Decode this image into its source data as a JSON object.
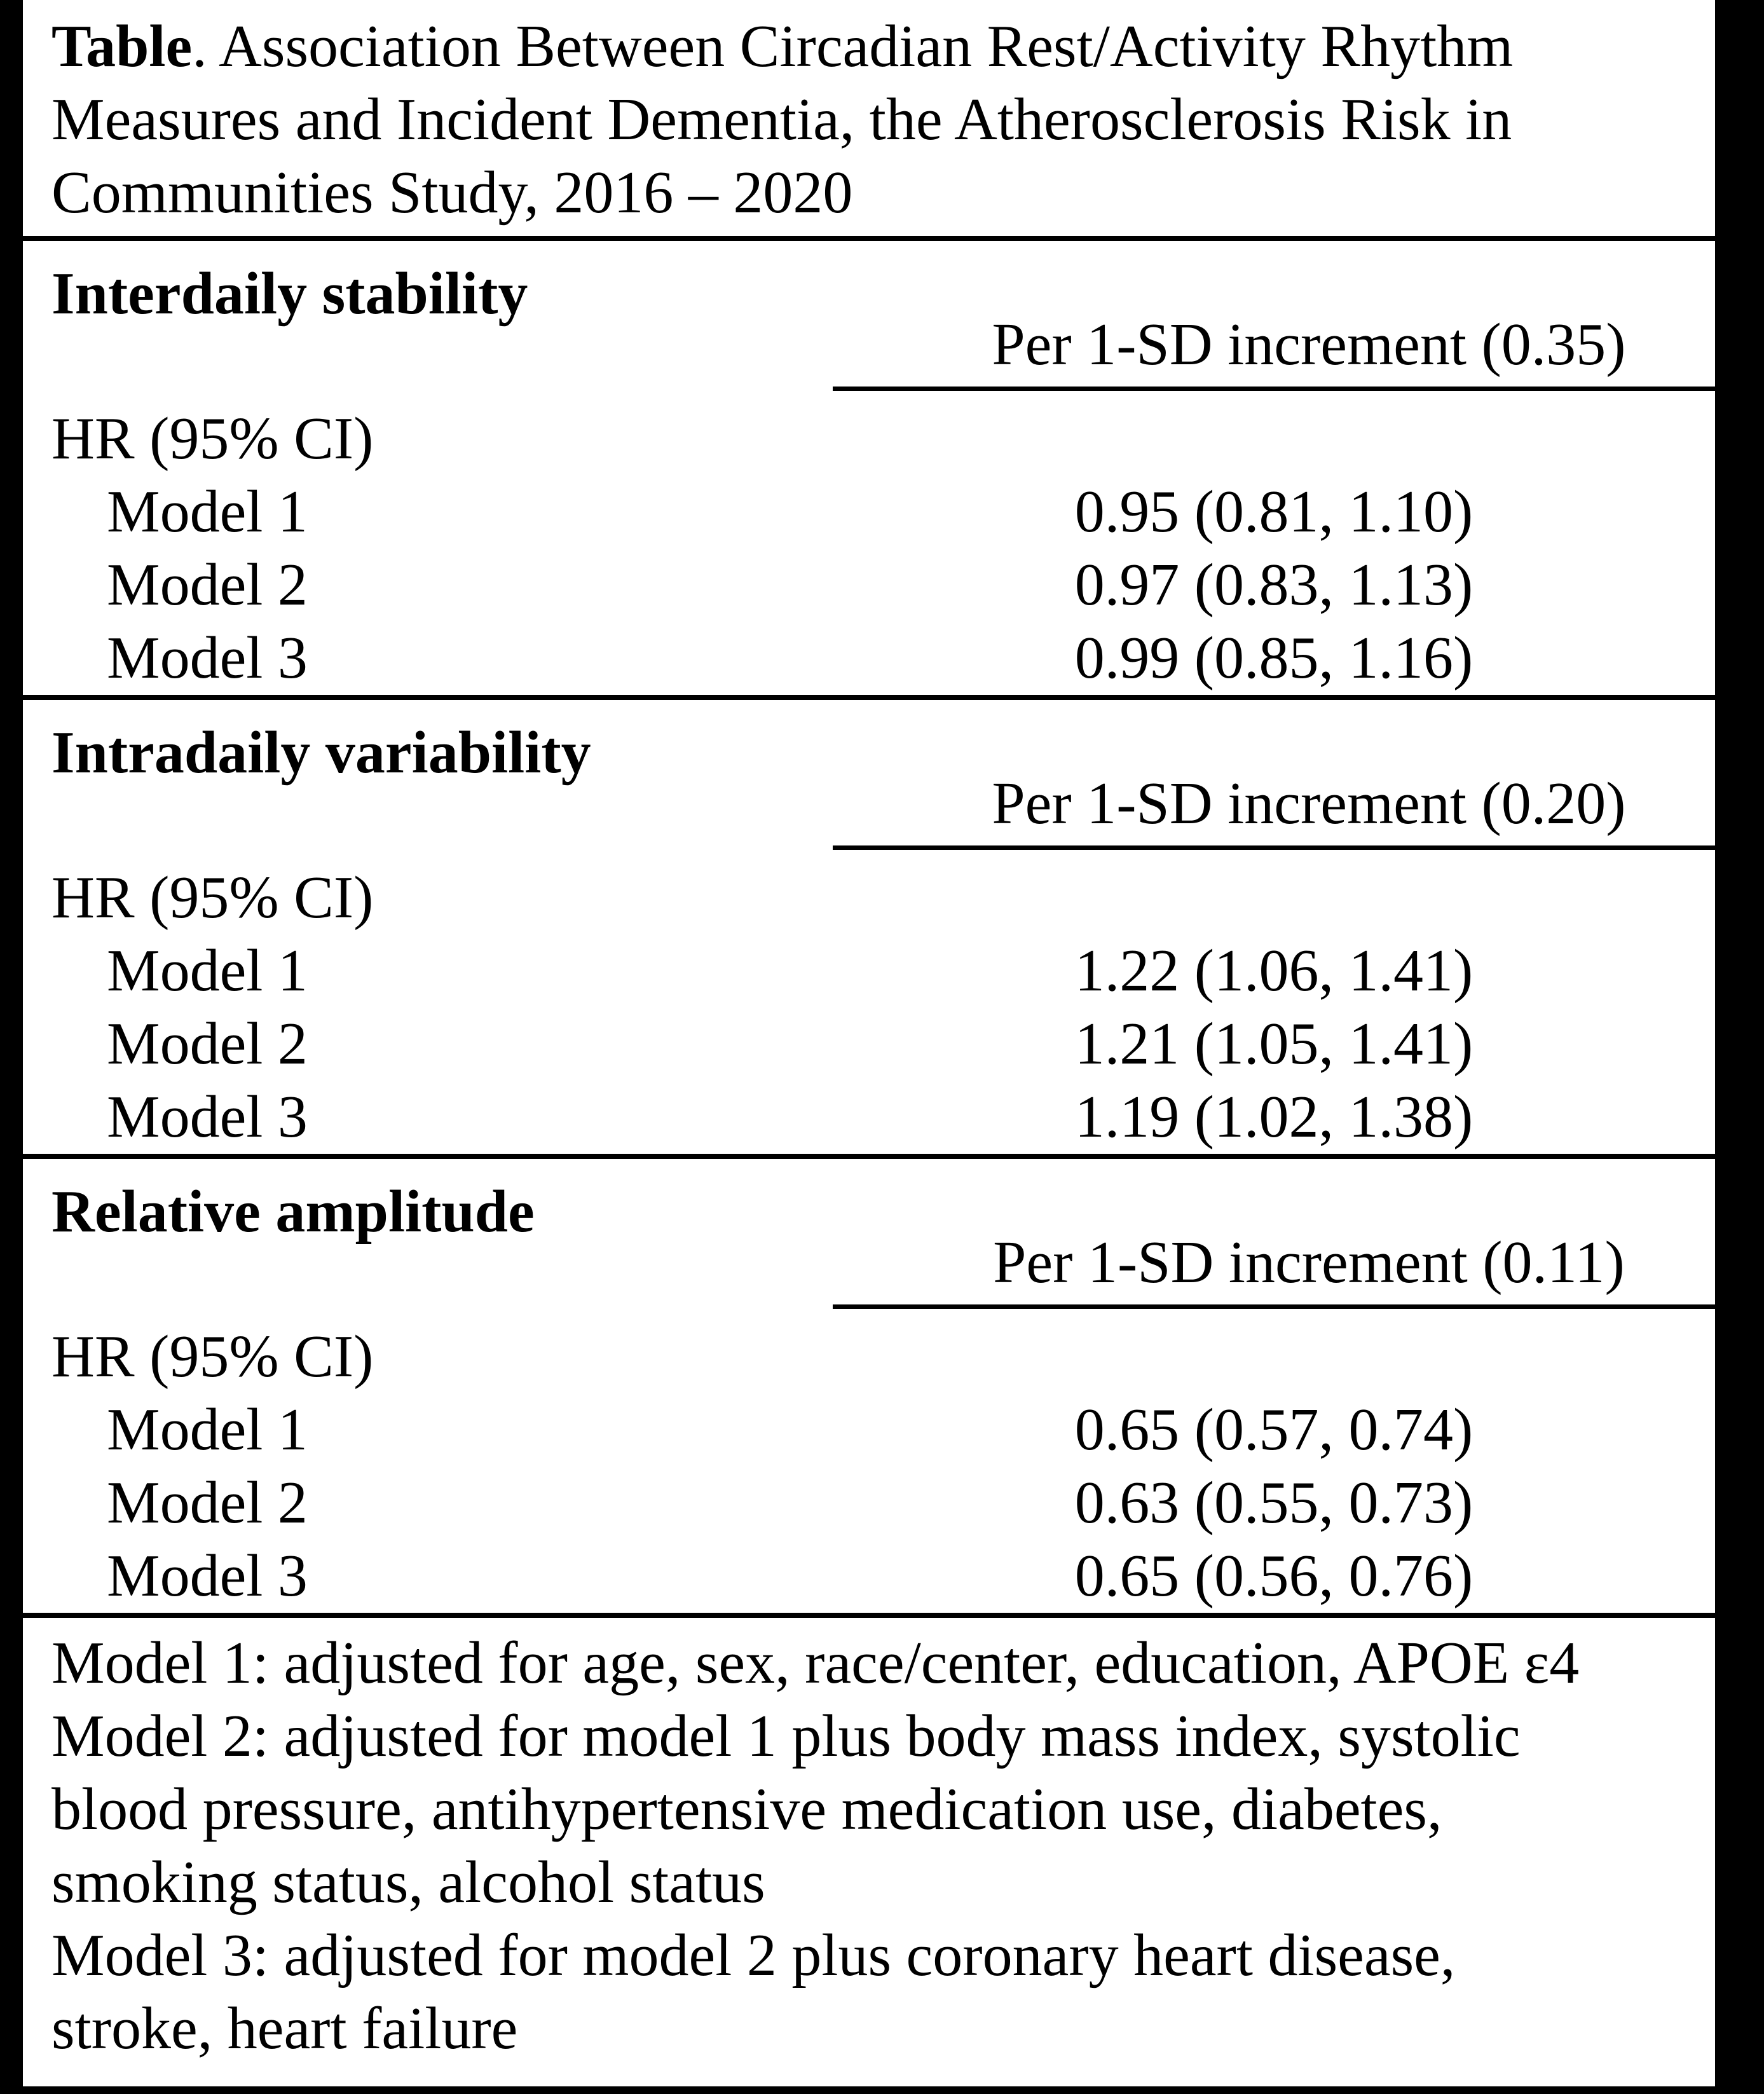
{
  "title": {
    "bold_word": "Table",
    "line1_rest": ". Association Between Circadian Rest/Activity Rhythm",
    "line2": "Measures and Incident Dementia, the Atherosclerosis Risk in",
    "line3": "Communities Study, 2016 – 2020"
  },
  "sections": [
    {
      "header": "Interdaily stability",
      "column_header": "Per 1-SD increment (0.35)",
      "hr_label": "HR (95% CI)",
      "rows": [
        {
          "label": "Model 1",
          "value": "0.95 (0.81, 1.10)"
        },
        {
          "label": "Model 2",
          "value": "0.97 (0.83, 1.13)"
        },
        {
          "label": "Model 3",
          "value": "0.99 (0.85, 1.16)"
        }
      ]
    },
    {
      "header": "Intradaily variability",
      "column_header": "Per 1-SD increment (0.20)",
      "hr_label": "HR (95% CI)",
      "rows": [
        {
          "label": "Model 1",
          "value": "1.22 (1.06, 1.41)"
        },
        {
          "label": "Model 2",
          "value": "1.21 (1.05, 1.41)"
        },
        {
          "label": "Model 3",
          "value": "1.19 (1.02, 1.38)"
        }
      ]
    },
    {
      "header": "Relative amplitude",
      "column_header": "Per 1-SD increment (0.11)",
      "hr_label": "HR (95% CI)",
      "rows": [
        {
          "label": "Model 1",
          "value": "0.65 (0.57, 0.74)"
        },
        {
          "label": "Model 2",
          "value": "0.63 (0.55, 0.73)"
        },
        {
          "label": "Model 3",
          "value": "0.65 (0.56, 0.76)"
        }
      ]
    }
  ],
  "footnotes": {
    "lines": [
      "Model 1: adjusted for age, sex, race/center, education, APOE ε4",
      "Model 2: adjusted for model 1 plus body mass index, systolic",
      "blood pressure, antihypertensive medication use, diabetes,",
      "smoking status, alcohol status",
      "Model 3: adjusted for model 2 plus coronary heart disease,",
      "stroke, heart failure"
    ]
  }
}
